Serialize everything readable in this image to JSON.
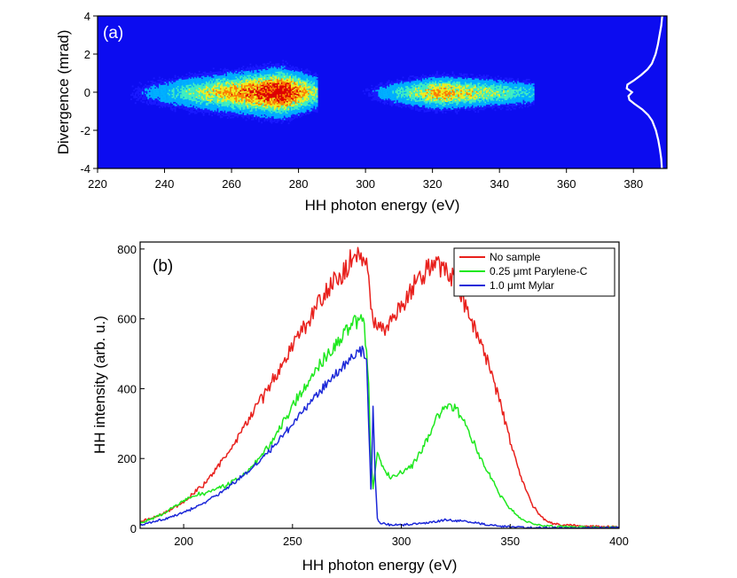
{
  "chart_data": [
    {
      "type": "heatmap",
      "panel_label": "(a)",
      "xlabel": "HH photon energy (eV)",
      "ylabel": "Divergence (mrad)",
      "xlim": [
        220,
        390
      ],
      "ylim": [
        -4,
        4
      ],
      "x_ticks": [
        "220",
        "240",
        "260",
        "280",
        "300",
        "320",
        "340",
        "360",
        "380"
      ],
      "y_ticks": [
        "-4",
        "-2",
        "0",
        "2",
        "4"
      ],
      "colormap": [
        "#1a1aff",
        "#00b0ff",
        "#40f0c0",
        "#f0f020",
        "#ff8000",
        "#e00000"
      ],
      "background_color": "#0c0cf0",
      "beam_lobes": [
        {
          "x_from": 226,
          "x_to": 285.5,
          "peak_x": 275,
          "sigma_mrad": 0.55,
          "peak_level": 1.0
        },
        {
          "x_from": 297,
          "x_to": 350,
          "peak_x": 322,
          "sigma_mrad": 0.45,
          "peak_level": 0.7
        }
      ],
      "lineout": {
        "color": "#ffffff",
        "divergence_mrad": [
          -4,
          -3.5,
          -3,
          -2.5,
          -2,
          -1.5,
          -1.2,
          -0.9,
          -0.6,
          -0.4,
          -0.2,
          0,
          0.2,
          0.4,
          0.6,
          0.9,
          1.2,
          1.5,
          2,
          2.5,
          3,
          3.5,
          4
        ],
        "energy_eV": [
          388.5,
          388.3,
          387.9,
          387.4,
          386.7,
          385.6,
          384.4,
          382.6,
          380.2,
          378.8,
          378.5,
          379.6,
          378.0,
          378.2,
          380.0,
          382.3,
          384.2,
          385.5,
          386.6,
          387.3,
          387.8,
          388.3,
          388.6
        ]
      }
    },
    {
      "type": "line",
      "panel_label": "(b)",
      "xlabel": "HH photon energy (eV)",
      "ylabel": "HH intensity (arb. u.)",
      "xlim": [
        180,
        400
      ],
      "ylim": [
        0,
        820
      ],
      "x_ticks": [
        "200",
        "250",
        "300",
        "350",
        "400"
      ],
      "y_ticks": [
        "0",
        "200",
        "400",
        "600",
        "800"
      ],
      "legend_position": "top-right",
      "series": [
        {
          "name": "No sample",
          "color": "#e8201c",
          "x": [
            180,
            190,
            200,
            210,
            220,
            230,
            240,
            250,
            260,
            270,
            276,
            280,
            283,
            285,
            286,
            287,
            288,
            290,
            292,
            295,
            300,
            305,
            310,
            315,
            320,
            325,
            330,
            335,
            340,
            345,
            350,
            355,
            360,
            365,
            370,
            380,
            390,
            400
          ],
          "values": [
            18,
            40,
            75,
            130,
            215,
            310,
            415,
            520,
            625,
            710,
            760,
            780,
            770,
            720,
            650,
            600,
            580,
            565,
            570,
            590,
            640,
            690,
            730,
            755,
            745,
            700,
            630,
            555,
            470,
            370,
            250,
            145,
            70,
            28,
            12,
            8,
            5,
            4
          ]
        },
        {
          "name": "0.25 μmt Parylene-C",
          "color": "#1ee81e",
          "x": [
            180,
            190,
            200,
            205,
            210,
            220,
            230,
            240,
            250,
            260,
            270,
            276,
            280,
            283,
            285,
            286,
            287,
            288,
            289,
            290,
            292,
            295,
            300,
            305,
            310,
            315,
            320,
            325,
            330,
            335,
            340,
            345,
            350,
            355,
            360,
            365,
            370,
            380,
            390,
            400
          ],
          "values": [
            15,
            40,
            80,
            95,
            100,
            125,
            165,
            240,
            350,
            450,
            530,
            575,
            595,
            590,
            400,
            200,
            120,
            170,
            210,
            200,
            165,
            145,
            160,
            180,
            230,
            300,
            355,
            340,
            290,
            220,
            160,
            100,
            55,
            28,
            13,
            8,
            5,
            4,
            3,
            3
          ]
        },
        {
          "name": "1.0 μmt Mylar",
          "color": "#1c28d8",
          "x": [
            180,
            190,
            200,
            210,
            220,
            230,
            240,
            250,
            260,
            270,
            276,
            280,
            282,
            284,
            285,
            286,
            286.5,
            287,
            288,
            289,
            290,
            295,
            300,
            310,
            320,
            330,
            340,
            350,
            360,
            370,
            400
          ],
          "values": [
            8,
            25,
            45,
            75,
            115,
            165,
            225,
            300,
            375,
            440,
            480,
            505,
            510,
            470,
            300,
            110,
            200,
            345,
            150,
            30,
            15,
            10,
            10,
            14,
            24,
            20,
            10,
            4,
            2,
            1,
            1
          ]
        }
      ]
    }
  ]
}
